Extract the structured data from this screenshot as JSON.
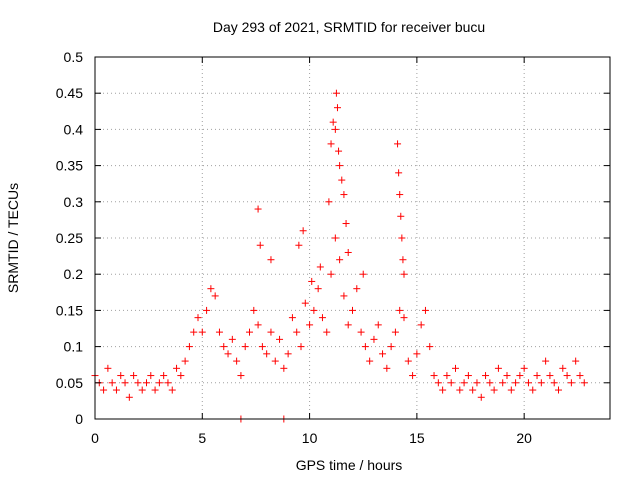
{
  "chart_data": {
    "type": "scatter",
    "title": "Day 293 of 2021, SRMTID for receiver bucu",
    "xlabel": "GPS time / hours",
    "ylabel": "SRMTID / TECUs",
    "xlim": [
      0,
      24
    ],
    "ylim": [
      0,
      0.5
    ],
    "xticks": [
      0,
      5,
      10,
      15,
      20
    ],
    "xtick_labels": [
      "0",
      "5",
      "10",
      "15",
      "20"
    ],
    "yticks": [
      0,
      0.05,
      0.1,
      0.15,
      0.2,
      0.25,
      0.3,
      0.35,
      0.4,
      0.45,
      0.5
    ],
    "ytick_labels": [
      "0",
      "0.05",
      "0.1",
      "0.15",
      "0.2",
      "0.25",
      "0.3",
      "0.35",
      "0.4",
      "0.45",
      "0.5"
    ],
    "grid": true,
    "marker": "+",
    "color": "#ff0000",
    "series": [
      {
        "name": "SRMTID",
        "x": [
          0.0,
          0.2,
          0.4,
          0.6,
          0.8,
          1.0,
          1.2,
          1.4,
          1.6,
          1.8,
          2.0,
          2.2,
          2.4,
          2.6,
          2.8,
          3.0,
          3.2,
          3.4,
          3.6,
          3.8,
          4.0,
          4.2,
          4.4,
          4.6,
          4.8,
          5.0,
          5.2,
          5.4,
          5.6,
          5.8,
          6.0,
          6.2,
          6.4,
          6.6,
          6.8,
          7.0,
          7.2,
          7.4,
          7.6,
          7.8,
          8.0,
          8.2,
          8.4,
          8.6,
          8.8,
          9.0,
          9.2,
          9.4,
          9.6,
          9.8,
          10.0,
          10.2,
          10.4,
          10.6,
          10.8,
          11.0,
          11.2,
          11.4,
          11.6,
          11.8,
          12.0,
          12.2,
          12.4,
          12.6,
          12.8,
          13.0,
          13.2,
          13.4,
          13.6,
          13.8,
          14.0,
          14.2,
          14.4,
          14.6,
          14.8,
          15.0,
          15.2,
          15.4,
          15.6,
          15.8,
          16.0,
          16.2,
          16.4,
          16.6,
          16.8,
          17.0,
          17.2,
          17.4,
          17.6,
          17.8,
          18.0,
          18.2,
          18.4,
          18.6,
          18.8,
          19.0,
          19.2,
          19.4,
          19.6,
          19.8,
          20.0,
          20.2,
          20.4,
          20.6,
          20.8,
          21.0,
          21.2,
          21.4,
          21.6,
          21.8,
          22.0,
          22.2,
          22.4,
          22.6,
          22.8,
          7.6,
          7.7,
          8.2,
          9.5,
          9.7,
          10.1,
          10.5,
          10.9,
          11.0,
          11.1,
          11.2,
          11.25,
          11.3,
          11.35,
          11.4,
          11.5,
          11.6,
          11.7,
          11.8,
          12.5,
          14.1,
          14.15,
          14.2,
          14.25,
          14.3,
          14.35,
          14.4,
          6.8,
          8.8
        ],
        "y": [
          0.06,
          0.05,
          0.04,
          0.07,
          0.05,
          0.04,
          0.06,
          0.05,
          0.03,
          0.06,
          0.05,
          0.04,
          0.05,
          0.06,
          0.04,
          0.05,
          0.06,
          0.05,
          0.04,
          0.07,
          0.06,
          0.08,
          0.1,
          0.12,
          0.14,
          0.12,
          0.15,
          0.18,
          0.17,
          0.12,
          0.1,
          0.09,
          0.11,
          0.08,
          0.06,
          0.1,
          0.12,
          0.15,
          0.13,
          0.1,
          0.09,
          0.12,
          0.08,
          0.11,
          0.07,
          0.09,
          0.14,
          0.12,
          0.1,
          0.16,
          0.13,
          0.15,
          0.18,
          0.14,
          0.12,
          0.2,
          0.25,
          0.22,
          0.17,
          0.13,
          0.15,
          0.18,
          0.12,
          0.1,
          0.08,
          0.11,
          0.13,
          0.09,
          0.07,
          0.1,
          0.12,
          0.15,
          0.14,
          0.08,
          0.06,
          0.09,
          0.13,
          0.15,
          0.1,
          0.06,
          0.05,
          0.04,
          0.06,
          0.05,
          0.07,
          0.04,
          0.05,
          0.06,
          0.04,
          0.05,
          0.03,
          0.06,
          0.05,
          0.04,
          0.07,
          0.05,
          0.06,
          0.04,
          0.05,
          0.06,
          0.07,
          0.05,
          0.04,
          0.06,
          0.05,
          0.08,
          0.06,
          0.05,
          0.04,
          0.07,
          0.06,
          0.05,
          0.08,
          0.06,
          0.05,
          0.29,
          0.24,
          0.22,
          0.24,
          0.26,
          0.19,
          0.21,
          0.3,
          0.38,
          0.41,
          0.4,
          0.45,
          0.43,
          0.37,
          0.35,
          0.33,
          0.31,
          0.27,
          0.23,
          0.2,
          0.38,
          0.34,
          0.31,
          0.28,
          0.25,
          0.22,
          0.2,
          0.0,
          0.0
        ]
      }
    ]
  }
}
